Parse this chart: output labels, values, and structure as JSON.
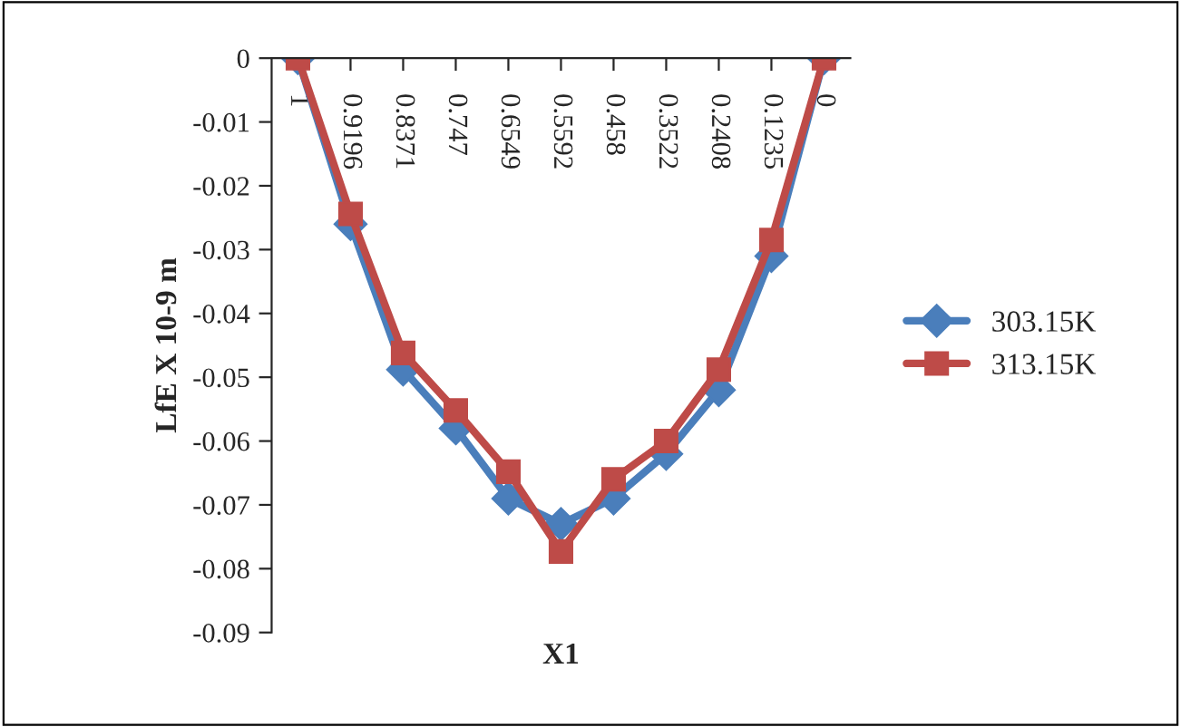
{
  "chart_data": {
    "type": "line",
    "xlabel": "X1",
    "ylabel": "LfE X 10-9 m",
    "categories": [
      "1",
      "0.9196",
      "0.8371",
      "0.747",
      "0.6549",
      "0.5592",
      "0.458",
      "0.3522",
      "0.2408",
      "0.1235",
      "0"
    ],
    "series": [
      {
        "name": "303.15K",
        "color": "#4a7ebb",
        "marker": "diamond",
        "values": [
          0,
          -0.026,
          -0.0488,
          -0.058,
          -0.069,
          -0.073,
          -0.069,
          -0.062,
          -0.052,
          -0.031,
          0
        ]
      },
      {
        "name": "313.15K",
        "color": "#be4b48",
        "marker": "square",
        "values": [
          0,
          -0.0244,
          -0.0462,
          -0.0552,
          -0.0648,
          -0.0773,
          -0.066,
          -0.06,
          -0.0488,
          -0.0285,
          0
        ]
      }
    ],
    "ylim": [
      -0.09,
      0
    ],
    "yticks": [
      0,
      -0.01,
      -0.02,
      -0.03,
      -0.04,
      -0.05,
      -0.06,
      -0.07,
      -0.08,
      -0.09
    ],
    "legend": "right",
    "grid": false
  }
}
